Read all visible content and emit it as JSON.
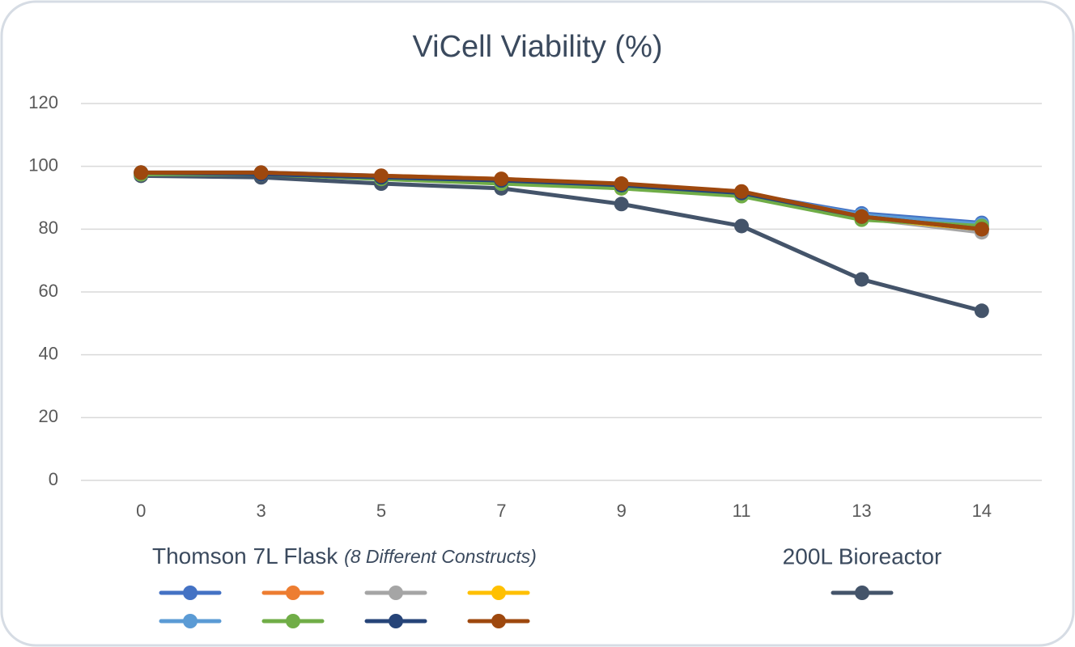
{
  "chart_data": {
    "type": "line",
    "title": "ViCell Viability (%)",
    "categories": [
      "0",
      "3",
      "5",
      "7",
      "9",
      "11",
      "13",
      "14"
    ],
    "ylim": [
      0,
      120
    ],
    "yticks": [
      0,
      20,
      40,
      60,
      80,
      100,
      120
    ],
    "grid": true,
    "legend_title": "Thomson 7L Flask",
    "legend_note": "(8 Different Constructs)",
    "series": [
      {
        "color": "#4472c4",
        "values": [
          98,
          98,
          97,
          95.5,
          94,
          91.5,
          85,
          82
        ]
      },
      {
        "color": "#ed7d31",
        "values": [
          98,
          97.5,
          97,
          96,
          94,
          91.5,
          84,
          80
        ]
      },
      {
        "color": "#a5a5a5",
        "values": [
          97.5,
          97.5,
          96.5,
          95,
          93.5,
          91,
          83.5,
          79
        ]
      },
      {
        "color": "#ffc000",
        "values": [
          98,
          97.5,
          96.5,
          95,
          93,
          91,
          83.5,
          80
        ]
      },
      {
        "color": "#5b9bd5",
        "values": [
          98,
          97.5,
          96.5,
          95.5,
          94,
          91.5,
          84.5,
          81.5
        ]
      },
      {
        "color": "#70ad47",
        "values": [
          97.5,
          97.5,
          96,
          94.5,
          93,
          90.5,
          83,
          81
        ]
      },
      {
        "color": "#264478",
        "values": [
          98,
          97.5,
          96.5,
          95.5,
          94,
          91.5,
          84,
          80
        ]
      },
      {
        "color": "#9e480e",
        "values": [
          98,
          98,
          97,
          96,
          94.5,
          92,
          84,
          80
        ]
      },
      {
        "name": "200L Bioreactor",
        "color": "#44546a",
        "values": [
          97,
          96.5,
          94.5,
          93,
          88,
          81,
          64,
          54
        ]
      }
    ]
  }
}
